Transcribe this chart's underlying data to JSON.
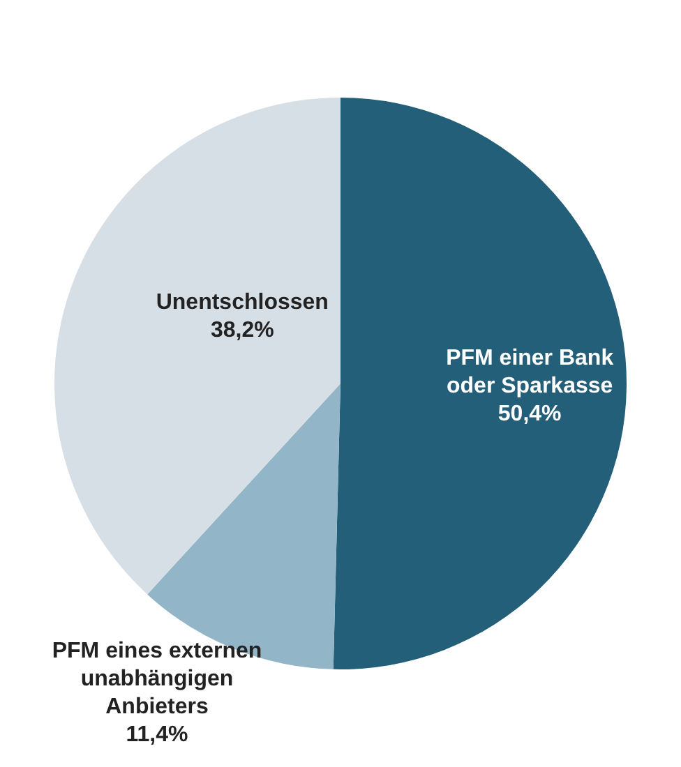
{
  "chart_data": {
    "type": "pie",
    "categories": [
      "PFM einer Bank oder Sparkasse",
      "PFM eines externen unabhängigen Anbieters",
      "Unentschlossen"
    ],
    "values": [
      50.4,
      11.4,
      38.2
    ],
    "value_labels": [
      "50,4%",
      "11,4%",
      "38,2%"
    ],
    "colors": [
      "#235f78",
      "#93b5c8",
      "#d7dfe6"
    ]
  }
}
